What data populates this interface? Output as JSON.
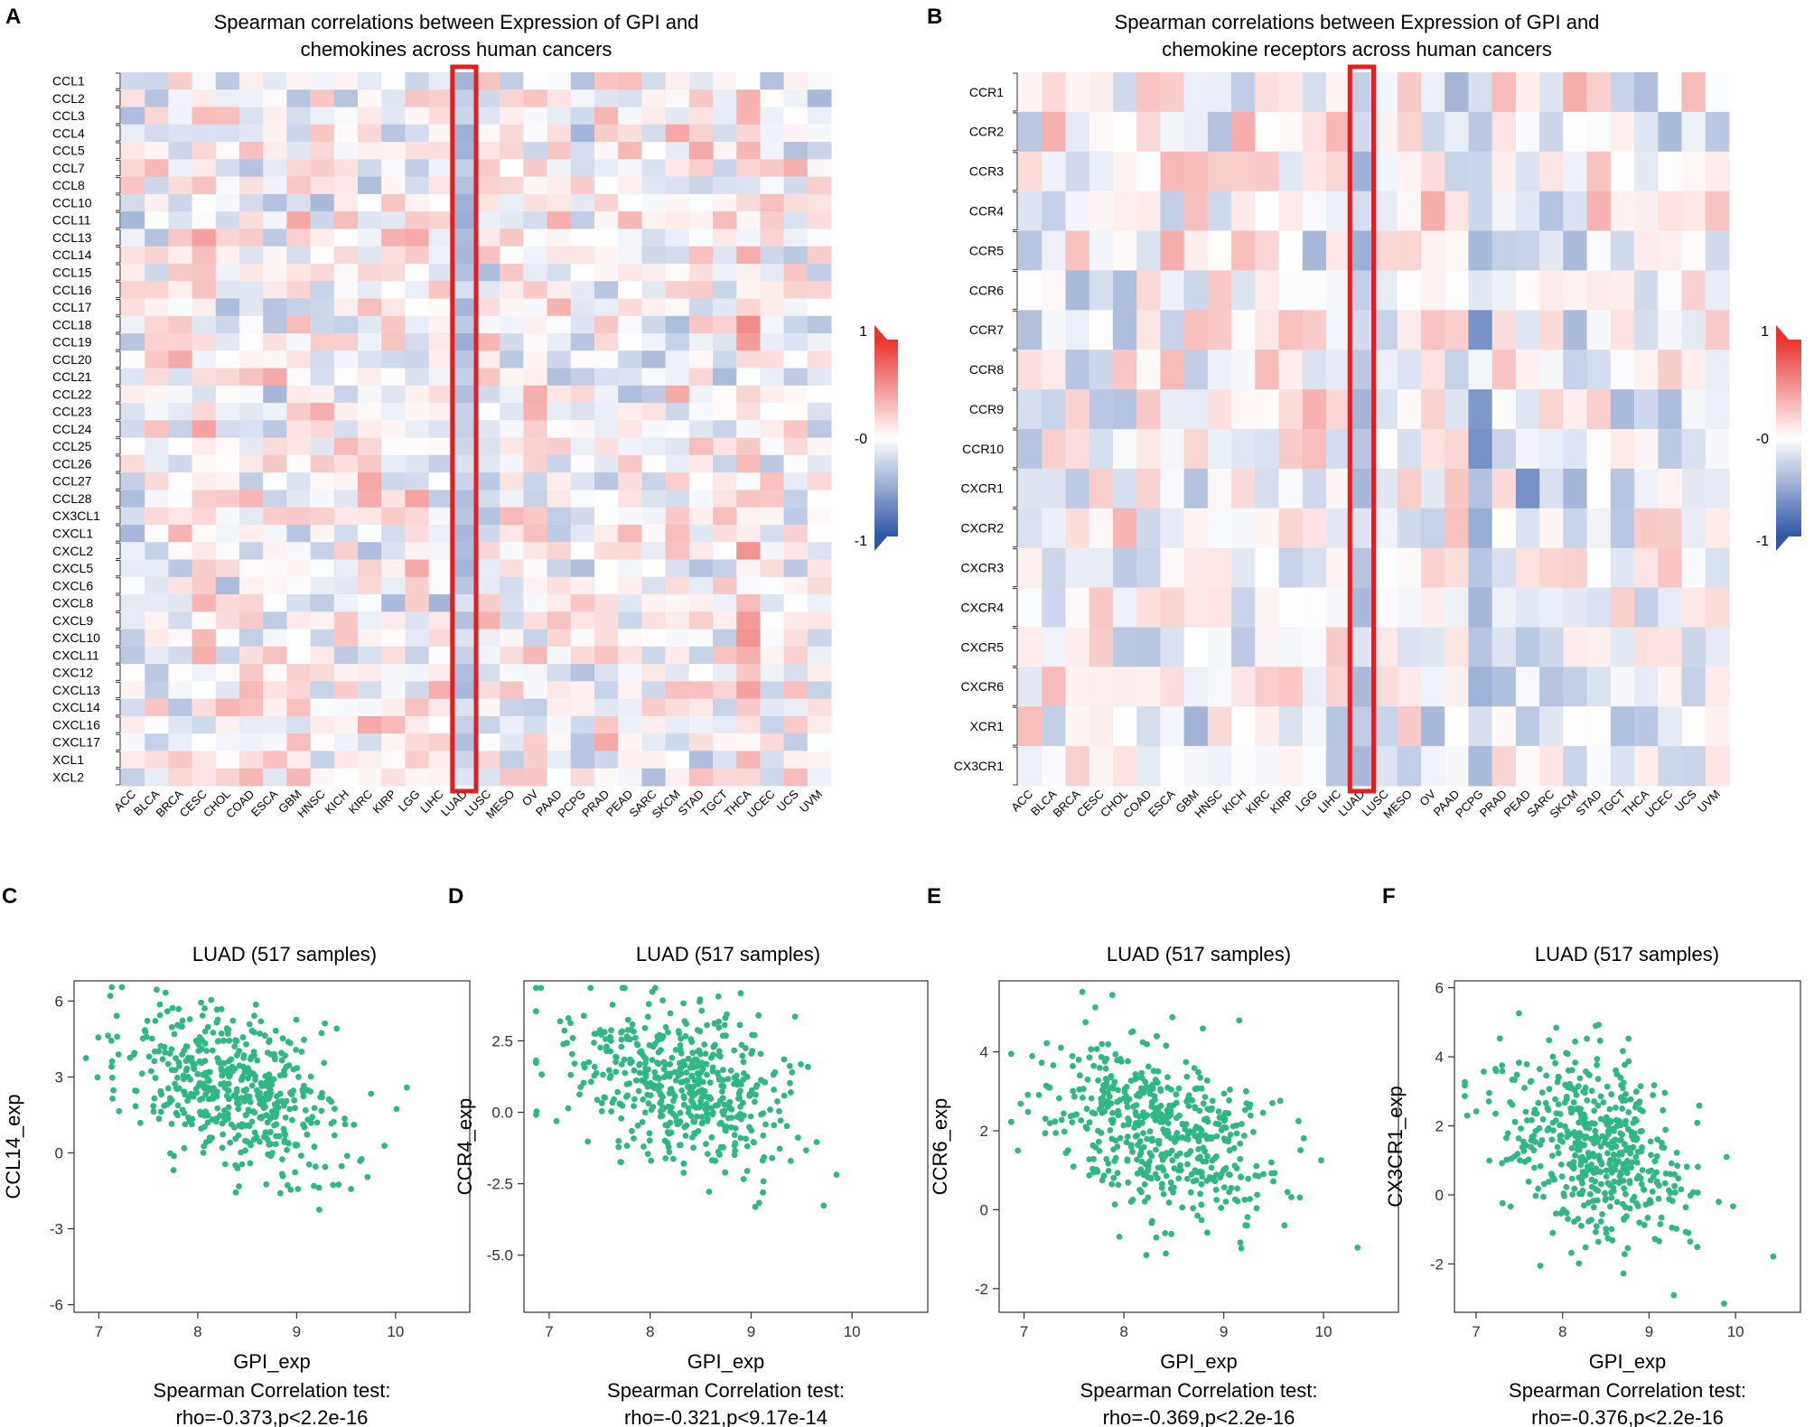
{
  "panels": {
    "a": {
      "letter": "A",
      "title1": "Spearman correlations  between Expression of GPI and",
      "title2": "chemokines across human cancers"
    },
    "b": {
      "letter": "B",
      "title1": "Spearman correlations  between Expression of GPI and",
      "title2": "chemokine receptors across human cancers"
    },
    "c": {
      "letter": "C"
    },
    "d": {
      "letter": "D"
    },
    "e": {
      "letter": "E"
    },
    "f": {
      "letter": "F"
    }
  },
  "colors": {
    "positive": "#e8332f",
    "neutral": "#ffffff",
    "negative": "#2f56a8",
    "highlight": "#e02020",
    "point": "#2fb784"
  },
  "chart_data": [
    {
      "type": "heatmap",
      "id": "A",
      "title": "Spearman correlations  between Expression of GPI and chemokines across human cancers",
      "rows": [
        "CCL1",
        "CCL2",
        "CCL3",
        "CCL4",
        "CCL5",
        "CCL7",
        "CCL8",
        "CCL10",
        "CCL11",
        "CCL13",
        "CCL14",
        "CCL15",
        "CCL16",
        "CCL17",
        "CCL18",
        "CCL19",
        "CCL20",
        "CCL21",
        "CCL22",
        "CCL23",
        "CCL24",
        "CCL25",
        "CCL26",
        "CCL27",
        "CCL28",
        "CX3CL1",
        "CXCL1",
        "CXCL2",
        "CXCL5",
        "CXCL6",
        "CXCL8",
        "CXCL9",
        "CXCL10",
        "CXCL11",
        "CXC12",
        "CXCL13",
        "CXCL14",
        "CXCL16",
        "CXCL17",
        "XCL1",
        "XCL2"
      ],
      "columns": [
        "ACC",
        "BLCA",
        "BRCA",
        "CESC",
        "CHOL",
        "COAD",
        "ESCA",
        "GBM",
        "HNSC",
        "KICH",
        "KIRC",
        "KIRP",
        "LGG",
        "LIHC",
        "LUAD",
        "LUSC",
        "MESO",
        "OV",
        "PAAD",
        "PCPG",
        "PRAD",
        "PEAD",
        "SARC",
        "SKCM",
        "STAD",
        "TGCT",
        "THCA",
        "UCEC",
        "UCS",
        "UVM"
      ],
      "highlight_column": "LUAD",
      "colorbar": {
        "max_label": "1",
        "mid_label": "-0",
        "min_label": "-1",
        "range": [
          -1,
          1
        ]
      },
      "values_note": "Cell values are estimated correlations in [-1,1]; mostly weak; LUAD column predominantly negative"
    },
    {
      "type": "heatmap",
      "id": "B",
      "title": "Spearman correlations  between Expression of GPI and chemokine receptors across human cancers",
      "rows": [
        "CCR1",
        "CCR2",
        "CCR3",
        "CCR4",
        "CCR5",
        "CCR6",
        "CCR7",
        "CCR8",
        "CCR9",
        "CCR10",
        "CXCR1",
        "CXCR2",
        "CXCR3",
        "CXCR4",
        "CXCR5",
        "CXCR6",
        "XCR1",
        "CX3CR1"
      ],
      "columns": [
        "ACC",
        "BLCA",
        "BRCA",
        "CESC",
        "CHOL",
        "COAD",
        "ESCA",
        "GBM",
        "HNSC",
        "KICH",
        "KIRC",
        "KIRP",
        "LGG",
        "LIHC",
        "LUAD",
        "LUSC",
        "MESO",
        "OV",
        "PAAD",
        "PCPG",
        "PRAD",
        "PEAD",
        "SARC",
        "SKCM",
        "STAD",
        "TGCT",
        "THCA",
        "UCEC",
        "UCS",
        "UVM"
      ],
      "highlight_column": "LUAD",
      "colorbar": {
        "max_label": "1",
        "mid_label": "-0",
        "min_label": "-1",
        "range": [
          -1,
          1
        ]
      }
    },
    {
      "type": "scatter",
      "id": "C",
      "title": "LUAD (517 samples)",
      "xlabel": "GPI_exp",
      "ylabel": "CCL14_exp",
      "test_label": "Spearman Correlation test:",
      "stat": "rho=-0.373,p<2.2e-16",
      "xlim": [
        6.75,
        10.75
      ],
      "ylim": [
        -6.3,
        6.8
      ],
      "xticks": [
        7,
        8,
        9,
        10
      ],
      "yticks": [
        6,
        3,
        0,
        -3,
        -6
      ],
      "ytick_labels": [
        "6",
        "3",
        "0",
        "-3",
        "-6"
      ],
      "n": 517,
      "rho": -0.373,
      "x_mean": 8.35,
      "x_sd": 0.55,
      "y_mean": 2.6,
      "y_sd": 1.65
    },
    {
      "type": "scatter",
      "id": "D",
      "title": "LUAD (517 samples)",
      "xlabel": "GPI_exp",
      "ylabel": "CCR4_exp",
      "test_label": "Spearman Correlation test:",
      "stat": "rho=-0.321,p<9.17e-14",
      "xlim": [
        6.75,
        10.75
      ],
      "ylim": [
        -7.0,
        4.6
      ],
      "xticks": [
        7,
        8,
        9,
        10
      ],
      "yticks": [
        2.5,
        0,
        -2.5,
        -5
      ],
      "ytick_labels": [
        "2.5",
        "0.0",
        "-2.5",
        "-5.0"
      ],
      "n": 517,
      "rho": -0.321,
      "x_mean": 8.35,
      "x_sd": 0.55,
      "y_mean": 0.9,
      "y_sd": 1.45
    },
    {
      "type": "scatter",
      "id": "E",
      "title": "LUAD (517 samples)",
      "xlabel": "GPI_exp",
      "ylabel": "CCR6_exp",
      "test_label": "Spearman Correlation test:",
      "stat": "rho=-0.369,p<2.2e-16",
      "xlim": [
        6.75,
        10.75
      ],
      "ylim": [
        -2.6,
        5.8
      ],
      "xticks": [
        7,
        8,
        9,
        10
      ],
      "yticks": [
        4,
        2,
        0,
        -2
      ],
      "ytick_labels": [
        "4",
        "2",
        "0",
        "-2"
      ],
      "n": 517,
      "rho": -0.369,
      "x_mean": 8.35,
      "x_sd": 0.55,
      "y_mean": 2.0,
      "y_sd": 1.15
    },
    {
      "type": "scatter",
      "id": "F",
      "title": "LUAD (517 samples)",
      "xlabel": "GPI_exp",
      "ylabel": "CX3CR1_exp",
      "test_label": "Spearman Correlation test:",
      "stat": "rho=-0.376,p<2.2e-16",
      "xlim": [
        6.75,
        10.75
      ],
      "ylim": [
        -3.4,
        6.2
      ],
      "xticks": [
        7,
        8,
        9,
        10
      ],
      "yticks": [
        6,
        4,
        2,
        0,
        -2
      ],
      "ytick_labels": [
        "6",
        "4",
        "2",
        "0",
        "-2"
      ],
      "n": 517,
      "rho": -0.376,
      "x_mean": 8.35,
      "x_sd": 0.55,
      "y_mean": 1.4,
      "y_sd": 1.4
    }
  ]
}
